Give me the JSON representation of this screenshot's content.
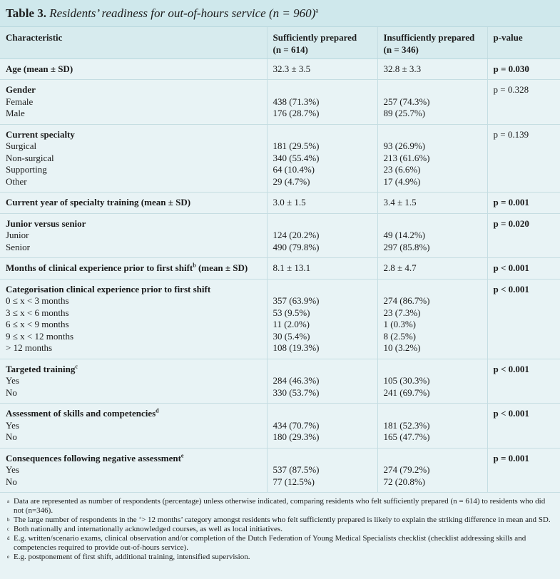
{
  "title": {
    "label": "Table 3.",
    "text": "Residents’ readiness for out-of-hours service (n = 960)",
    "mark": "a"
  },
  "columns": {
    "characteristic": "Characteristic",
    "sufficient": "Sufficiently prepared",
    "sufficient_n": "(n = 614)",
    "insufficient": "Insufficiently prepared",
    "insufficient_n": "(n = 346)",
    "pvalue": "p-value"
  },
  "groups": [
    {
      "heading": "Age (mean ± SD)",
      "mark": "",
      "p": "p = 0.030",
      "p_bold": true,
      "rows": [],
      "head_s": "32.3 ± 3.5",
      "head_i": "32.8 ± 3.3"
    },
    {
      "heading": "Gender",
      "mark": "",
      "p": "p = 0.328",
      "p_bold": false,
      "head_s": "",
      "head_i": "",
      "rows": [
        {
          "label": "Female",
          "s": "438 (71.3%)",
          "i": "257 (74.3%)"
        },
        {
          "label": "Male",
          "s": "176 (28.7%)",
          "i": "89 (25.7%)"
        }
      ]
    },
    {
      "heading": "Current specialty",
      "mark": "",
      "p": "p = 0.139",
      "p_bold": false,
      "head_s": "",
      "head_i": "",
      "rows": [
        {
          "label": "Surgical",
          "s": "181 (29.5%)",
          "i": "93 (26.9%)"
        },
        {
          "label": "Non-surgical",
          "s": "340 (55.4%)",
          "i": "213 (61.6%)"
        },
        {
          "label": "Supporting",
          "s": "64 (10.4%)",
          "i": "23 (6.6%)"
        },
        {
          "label": "Other",
          "s": "29 (4.7%)",
          "i": "17 (4.9%)"
        }
      ]
    },
    {
      "heading": "Current year of specialty training (mean ± SD)",
      "mark": "",
      "p": "p = 0.001",
      "p_bold": true,
      "rows": [],
      "head_s": "3.0 ± 1.5",
      "head_i": "3.4 ± 1.5"
    },
    {
      "heading": "Junior versus senior",
      "mark": "",
      "p": "p = 0.020",
      "p_bold": true,
      "head_s": "",
      "head_i": "",
      "rows": [
        {
          "label": "Junior",
          "s": "124 (20.2%)",
          "i": "49 (14.2%)"
        },
        {
          "label": "Senior",
          "s": "490 (79.8%)",
          "i": "297 (85.8%)"
        }
      ]
    },
    {
      "heading": "Months of clinical experience prior to first shift",
      "mark": "b",
      "heading_tail": " (mean ± SD)",
      "p": "p < 0.001",
      "p_bold": true,
      "rows": [],
      "head_s": "8.1 ± 13.1",
      "head_i": "2.8 ± 4.7"
    },
    {
      "heading": "Categorisation clinical experience prior to first shift",
      "mark": "",
      "p": "p < 0.001",
      "p_bold": true,
      "head_s": "",
      "head_i": "",
      "rows": [
        {
          "label": "0 ≤ x < 3 months",
          "s": "357 (63.9%)",
          "i": "274 (86.7%)"
        },
        {
          "label": "3 ≤ x < 6 months",
          "s": "53 (9.5%)",
          "i": "23 (7.3%)"
        },
        {
          "label": "6 ≤ x < 9 months",
          "s": "11 (2.0%)",
          "i": "1 (0.3%)"
        },
        {
          "label": "9 ≤ x < 12 months",
          "s": "30 (5.4%)",
          "i": "8 (2.5%)"
        },
        {
          "label": "> 12 months",
          "s": "108 (19.3%)",
          "i": "10 (3.2%)"
        }
      ]
    },
    {
      "heading": "Targeted training",
      "mark": "c",
      "p": "p < 0.001",
      "p_bold": true,
      "head_s": "",
      "head_i": "",
      "rows": [
        {
          "label": "Yes",
          "s": "284 (46.3%)",
          "i": "105 (30.3%)"
        },
        {
          "label": "No",
          "s": "330 (53.7%)",
          "i": "241 (69.7%)"
        }
      ]
    },
    {
      "heading": "Assessment of skills and competencies",
      "mark": "d",
      "p": "p < 0.001",
      "p_bold": true,
      "head_s": "",
      "head_i": "",
      "rows": [
        {
          "label": "Yes",
          "s": "434 (70.7%)",
          "i": "181 (52.3%)"
        },
        {
          "label": "No",
          "s": "180 (29.3%)",
          "i": "165 (47.7%)"
        }
      ]
    },
    {
      "heading": "Consequences following negative assessment",
      "mark": "e",
      "p": "p = 0.001",
      "p_bold": true,
      "head_s": "",
      "head_i": "",
      "rows": [
        {
          "label": "Yes",
          "s": "537 (87.5%)",
          "i": "274 (79.2%)"
        },
        {
          "label": "No",
          "s": "77 (12.5%)",
          "i": "72 (20.8%)"
        }
      ]
    }
  ],
  "footnotes": [
    {
      "mark": "a",
      "text": "Data are represented as number of respondents (percentage) unless otherwise indicated, comparing residents who felt sufficiently prepared (n = 614) to residents who did not (n=346)."
    },
    {
      "mark": "b",
      "text": "The large number of respondents in the ‘> 12 months’ category amongst residents who felt sufficiently prepared is likely to explain the striking difference in mean and SD."
    },
    {
      "mark": "c",
      "text": "Both nationally and internationally acknowledged courses, as well as local initiatives."
    },
    {
      "mark": "d",
      "text": "E.g. written/scenario exams, clinical observation and/or completion of the Dutch Federation of Young Medical Specialists checklist (checklist addressing skills and competencies required to provide out-of-hours service)."
    },
    {
      "mark": "e",
      "text": "E.g. postponement of first shift, additional training, intensified supervision."
    }
  ]
}
